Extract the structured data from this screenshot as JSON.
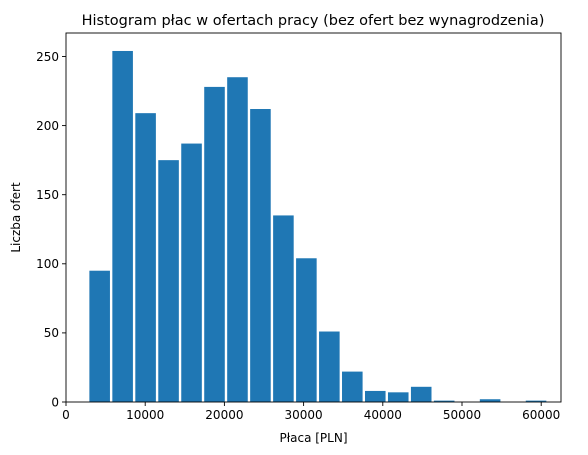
{
  "chart_data": {
    "type": "bar",
    "title": "Histogram płac w ofertach pracy (bez ofert bez wynagrodzenia)",
    "xlabel": "Płaca [PLN]",
    "ylabel": "Liczba ofert",
    "xlim": [
      0,
      62500
    ],
    "ylim": [
      0,
      267
    ],
    "x_ticks": [
      0,
      10000,
      20000,
      30000,
      40000,
      50000,
      60000
    ],
    "y_ticks": [
      0,
      50,
      100,
      150,
      200,
      250
    ],
    "grid": false,
    "bar_color": "#1f77b4",
    "bins": [
      {
        "start": 2800,
        "end": 5700,
        "value": 95
      },
      {
        "start": 5700,
        "end": 8600,
        "value": 254
      },
      {
        "start": 8600,
        "end": 11500,
        "value": 209
      },
      {
        "start": 11500,
        "end": 14400,
        "value": 175
      },
      {
        "start": 14400,
        "end": 17300,
        "value": 187
      },
      {
        "start": 17300,
        "end": 20200,
        "value": 228
      },
      {
        "start": 20200,
        "end": 23100,
        "value": 235
      },
      {
        "start": 23100,
        "end": 26000,
        "value": 212
      },
      {
        "start": 26000,
        "end": 28900,
        "value": 135
      },
      {
        "start": 28900,
        "end": 31800,
        "value": 104
      },
      {
        "start": 31800,
        "end": 34700,
        "value": 51
      },
      {
        "start": 34700,
        "end": 37600,
        "value": 22
      },
      {
        "start": 37600,
        "end": 40500,
        "value": 8
      },
      {
        "start": 40500,
        "end": 43400,
        "value": 7
      },
      {
        "start": 43400,
        "end": 46300,
        "value": 11
      },
      {
        "start": 46300,
        "end": 49200,
        "value": 1
      },
      {
        "start": 49200,
        "end": 52100,
        "value": 0
      },
      {
        "start": 52100,
        "end": 55000,
        "value": 2
      },
      {
        "start": 55000,
        "end": 57900,
        "value": 0
      },
      {
        "start": 57900,
        "end": 60800,
        "value": 1
      }
    ]
  }
}
